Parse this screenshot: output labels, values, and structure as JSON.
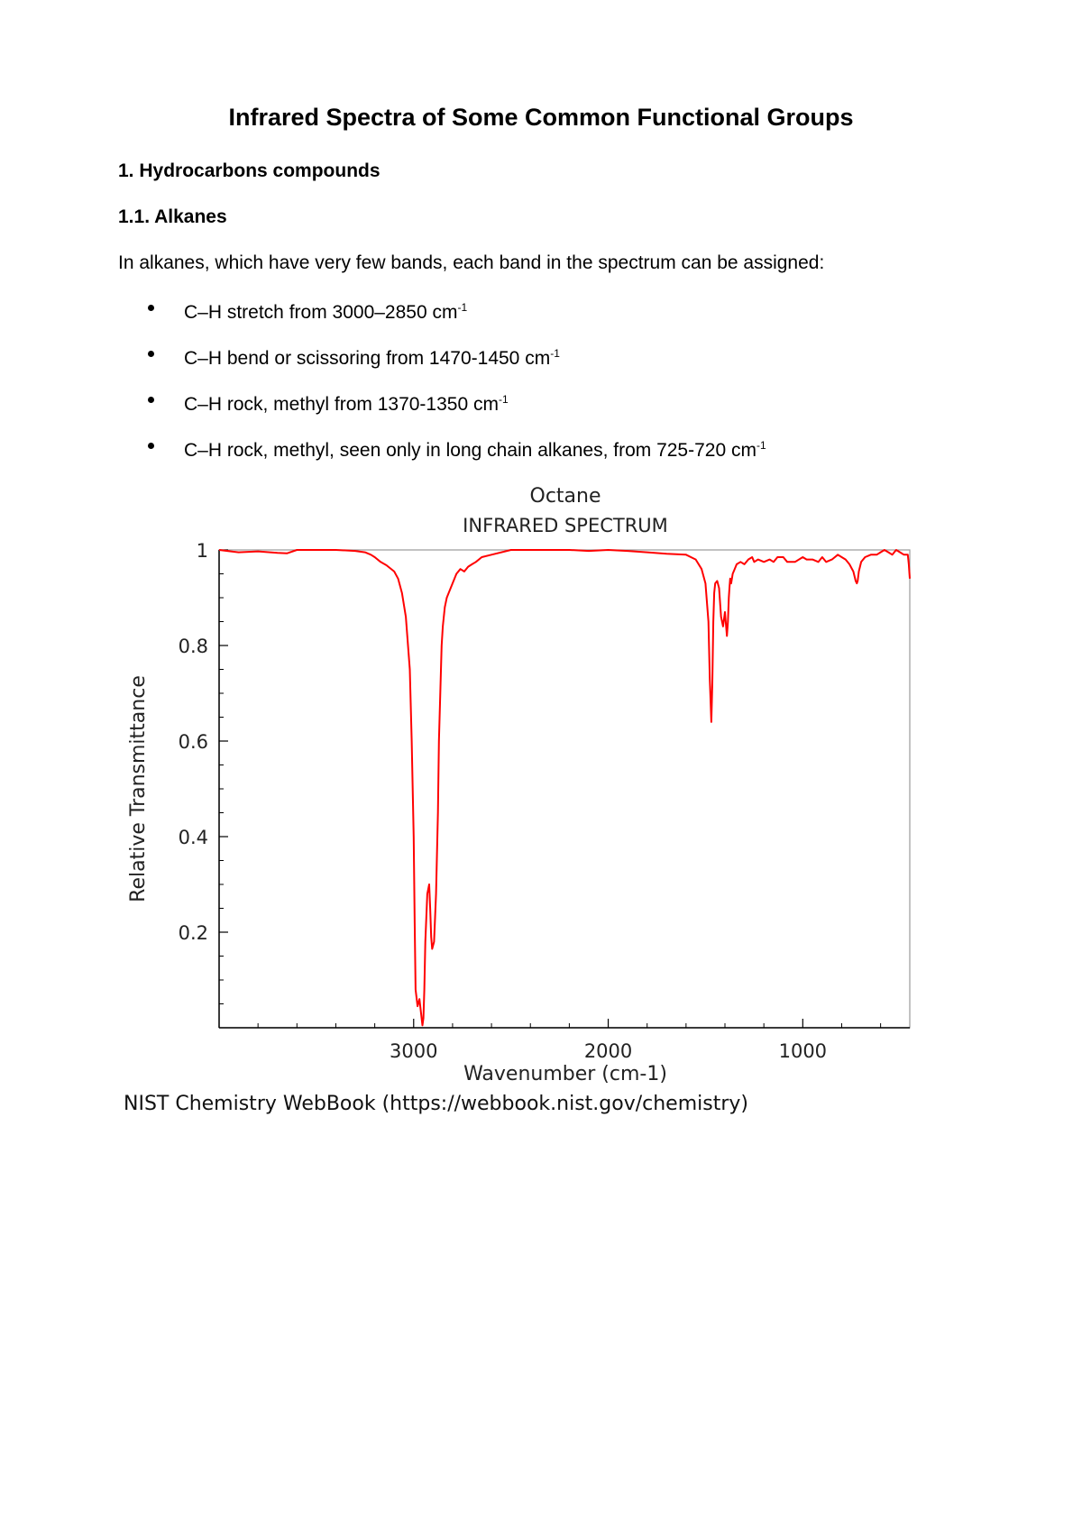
{
  "document": {
    "title": "Infrared Spectra of Some Common Functional Groups",
    "section_heading": "1. Hydrocarbons compounds",
    "subsection_heading": "1.1. Alkanes",
    "intro": "In alkanes, which have very few bands, each band in the spectrum can be assigned:",
    "bullets": [
      {
        "text": "C–H stretch from 3000–2850 cm",
        "sup": "-1"
      },
      {
        "text": "C–H bend or scissoring from 1470-1450 cm",
        "sup": "-1"
      },
      {
        "text": "C–H rock, methyl from 1370-1350 cm",
        "sup": "-1"
      },
      {
        "text": "C–H rock, methyl, seen only in long chain alkanes, from 725-720 cm",
        "sup": "-1"
      }
    ],
    "source": "NIST Chemistry WebBook (https://webbook.nist.gov/chemistry)"
  },
  "chart_data": {
    "type": "line",
    "title": "Octane",
    "subtitle": "INFRARED SPECTRUM",
    "xlabel": "Wavenumber (cm-1)",
    "ylabel": "Relative Transmittance",
    "x_reversed": true,
    "xlim": [
      4000,
      450
    ],
    "ylim": [
      0.0,
      1.0
    ],
    "x_ticks": [
      3000,
      2000,
      1000
    ],
    "y_ticks": [
      0.2,
      0.4,
      0.6,
      0.8,
      1
    ],
    "y_tick_labels": [
      "0.2",
      "0.4",
      "0.6",
      "0.8",
      "1"
    ],
    "grid": false,
    "line_color": "#ff0000",
    "series": [
      {
        "x": [
          4000,
          3900,
          3800,
          3700,
          3650,
          3600,
          3500,
          3400,
          3300,
          3250,
          3220,
          3200,
          3170,
          3140,
          3100,
          3080,
          3060,
          3040,
          3020,
          3010,
          3000,
          2995,
          2990,
          2980,
          2970,
          2962,
          2955,
          2950,
          2945,
          2940,
          2930,
          2920,
          2915,
          2910,
          2905,
          2895,
          2885,
          2875,
          2870,
          2862,
          2856,
          2850,
          2845,
          2840,
          2830,
          2820,
          2800,
          2780,
          2760,
          2740,
          2720,
          2700,
          2680,
          2650,
          2600,
          2500,
          2400,
          2300,
          2200,
          2100,
          2000,
          1900,
          1800,
          1700,
          1600,
          1550,
          1520,
          1500,
          1485,
          1478,
          1470,
          1465,
          1460,
          1455,
          1450,
          1440,
          1430,
          1420,
          1410,
          1400,
          1390,
          1385,
          1380,
          1377,
          1373,
          1368,
          1360,
          1350,
          1340,
          1320,
          1300,
          1280,
          1260,
          1250,
          1230,
          1200,
          1170,
          1150,
          1130,
          1100,
          1080,
          1060,
          1040,
          1000,
          980,
          950,
          920,
          900,
          880,
          850,
          820,
          800,
          780,
          760,
          740,
          728,
          722,
          718,
          712,
          700,
          680,
          650,
          620,
          600,
          580,
          560,
          540,
          520,
          500,
          480,
          460,
          455,
          450
        ],
        "y": [
          1.0,
          0.995,
          0.997,
          0.994,
          0.993,
          1.0,
          1.0,
          1.0,
          0.998,
          0.995,
          0.99,
          0.985,
          0.975,
          0.968,
          0.955,
          0.94,
          0.91,
          0.86,
          0.75,
          0.6,
          0.4,
          0.22,
          0.08,
          0.045,
          0.06,
          0.03,
          0.005,
          0.02,
          0.08,
          0.18,
          0.28,
          0.3,
          0.25,
          0.19,
          0.165,
          0.18,
          0.28,
          0.45,
          0.6,
          0.72,
          0.8,
          0.84,
          0.86,
          0.88,
          0.9,
          0.91,
          0.93,
          0.95,
          0.96,
          0.955,
          0.965,
          0.97,
          0.975,
          0.985,
          0.99,
          1.0,
          1.0,
          1.0,
          1.0,
          0.998,
          1.0,
          0.998,
          0.995,
          0.992,
          0.99,
          0.98,
          0.96,
          0.93,
          0.85,
          0.73,
          0.64,
          0.72,
          0.85,
          0.91,
          0.93,
          0.935,
          0.92,
          0.86,
          0.84,
          0.87,
          0.82,
          0.85,
          0.9,
          0.92,
          0.94,
          0.93,
          0.95,
          0.96,
          0.97,
          0.975,
          0.97,
          0.98,
          0.985,
          0.975,
          0.98,
          0.975,
          0.98,
          0.975,
          0.985,
          0.985,
          0.975,
          0.975,
          0.975,
          0.985,
          0.98,
          0.98,
          0.975,
          0.985,
          0.975,
          0.98,
          0.99,
          0.985,
          0.98,
          0.97,
          0.955,
          0.935,
          0.93,
          0.935,
          0.955,
          0.975,
          0.985,
          0.99,
          0.99,
          0.995,
          1.0,
          0.995,
          0.99,
          1.0,
          0.995,
          0.99,
          0.99,
          0.97,
          0.94
        ]
      }
    ]
  }
}
